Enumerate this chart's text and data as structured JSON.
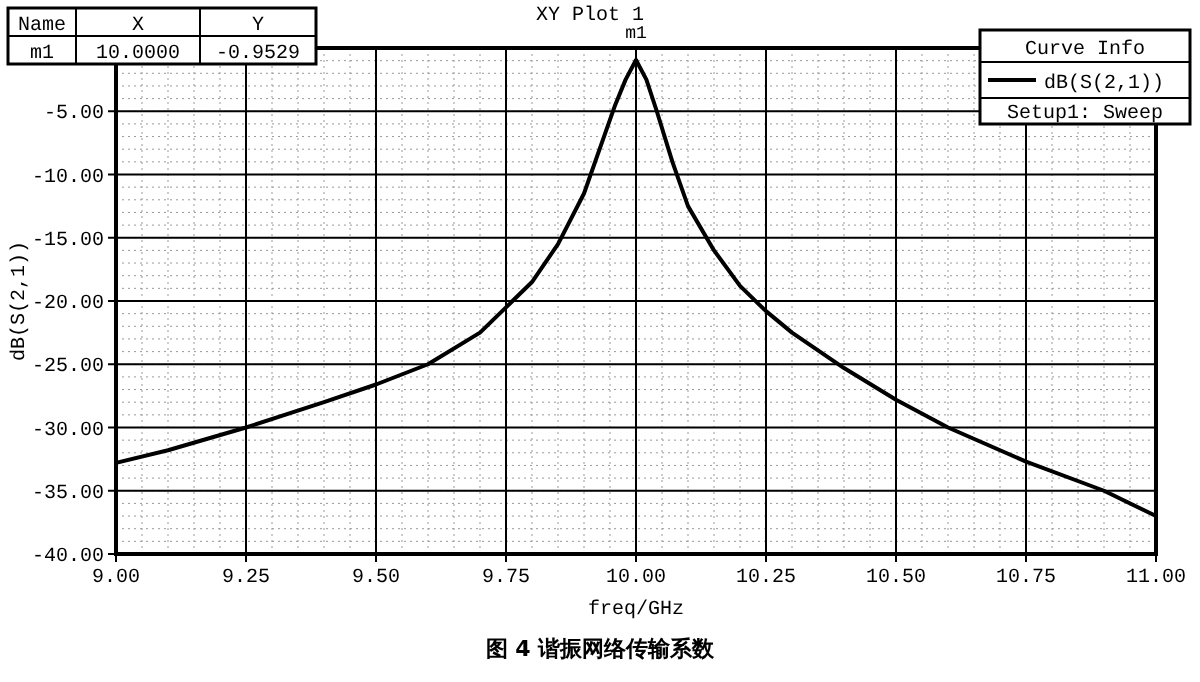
{
  "chart_data": {
    "type": "line",
    "title": "XY Plot 1",
    "xlabel": "freq/GHz",
    "ylabel": "dB(S(2,1))",
    "legend_title": "Curve Info",
    "legend": "top right",
    "grid": true,
    "marker": "none",
    "line_style": "solid",
    "xlim": [
      9,
      11
    ],
    "ylim": [
      -40,
      0
    ],
    "xticks": [
      {
        "value": 9,
        "label": "9.00"
      },
      {
        "value": 9.25,
        "label": "9.25"
      },
      {
        "value": 9.5,
        "label": "9.50"
      },
      {
        "value": 9.75,
        "label": "9.75"
      },
      {
        "value": 10,
        "label": "10.00"
      },
      {
        "value": 10.25,
        "label": "10.25"
      },
      {
        "value": 10.5,
        "label": "10.50"
      },
      {
        "value": 10.75,
        "label": "10.75"
      },
      {
        "value": 11,
        "label": "11.00"
      }
    ],
    "yticks": [
      {
        "value": -40,
        "label": "-40.00"
      },
      {
        "value": -35,
        "label": "-35.00"
      },
      {
        "value": -30,
        "label": "-30.00"
      },
      {
        "value": -25,
        "label": "-25.00"
      },
      {
        "value": -20,
        "label": "-20.00"
      },
      {
        "value": -15,
        "label": "-15.00"
      },
      {
        "value": -10,
        "label": "-10.00"
      },
      {
        "value": -5,
        "label": "-5.00"
      }
    ],
    "series": [
      {
        "name": "dB(S(2,1))",
        "color": "#000000",
        "x": [
          9.0,
          9.1,
          9.25,
          9.4,
          9.5,
          9.6,
          9.7,
          9.75,
          9.8,
          9.85,
          9.9,
          9.93,
          9.96,
          9.98,
          10.0,
          10.02,
          10.04,
          10.07,
          10.1,
          10.15,
          10.2,
          10.25,
          10.3,
          10.4,
          10.5,
          10.6,
          10.75,
          10.9,
          11.0
        ],
        "values": [
          -32.8,
          -31.8,
          -30,
          -28,
          -26.6,
          -25,
          -22.5,
          -20.5,
          -18.5,
          -15.5,
          -11.5,
          -8,
          -4.5,
          -2.5,
          -0.9529,
          -2.5,
          -5,
          -9,
          -12.5,
          -16,
          -18.8,
          -20.8,
          -22.5,
          -25.3,
          -27.8,
          -30,
          -32.7,
          -35,
          -37
        ]
      }
    ],
    "annotations": [
      "Name",
      "X",
      "Y",
      "m1",
      "10.0000",
      "-0.9529",
      "Setup1: Sweep",
      {
        "text": "m1",
        "x": 10.0,
        "y": -0.9529
      },
      "图 4  谐振网络传输系数"
    ]
  }
}
